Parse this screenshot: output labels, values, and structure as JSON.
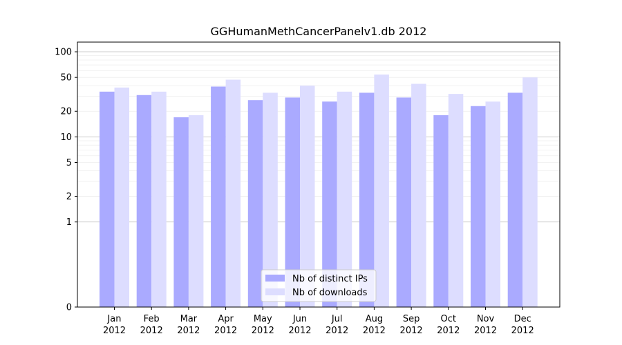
{
  "chart_data": {
    "type": "bar",
    "title": "GGHumanMethCancerPanelv1.db 2012",
    "yscale": "symlog",
    "ylim": [
      0,
      130
    ],
    "yticks": [
      0,
      1,
      2,
      5,
      10,
      20,
      50,
      100
    ],
    "grid": true,
    "legend_position": "bottom-center",
    "categories": [
      [
        "Jan",
        "2012"
      ],
      [
        "Feb",
        "2012"
      ],
      [
        "Mar",
        "2012"
      ],
      [
        "Apr",
        "2012"
      ],
      [
        "May",
        "2012"
      ],
      [
        "Jun",
        "2012"
      ],
      [
        "Jul",
        "2012"
      ],
      [
        "Aug",
        "2012"
      ],
      [
        "Sep",
        "2012"
      ],
      [
        "Oct",
        "2012"
      ],
      [
        "Nov",
        "2012"
      ],
      [
        "Dec",
        "2012"
      ]
    ],
    "series": [
      {
        "name": "Nb of distinct IPs",
        "color": "#aaaaff",
        "values": [
          34,
          31,
          17,
          39,
          27,
          29,
          26,
          33,
          29,
          18,
          23,
          33
        ]
      },
      {
        "name": "Nb of downloads",
        "color": "#ddddff",
        "values": [
          38,
          34,
          18,
          47,
          33,
          40,
          34,
          54,
          42,
          32,
          26,
          50
        ]
      }
    ]
  }
}
